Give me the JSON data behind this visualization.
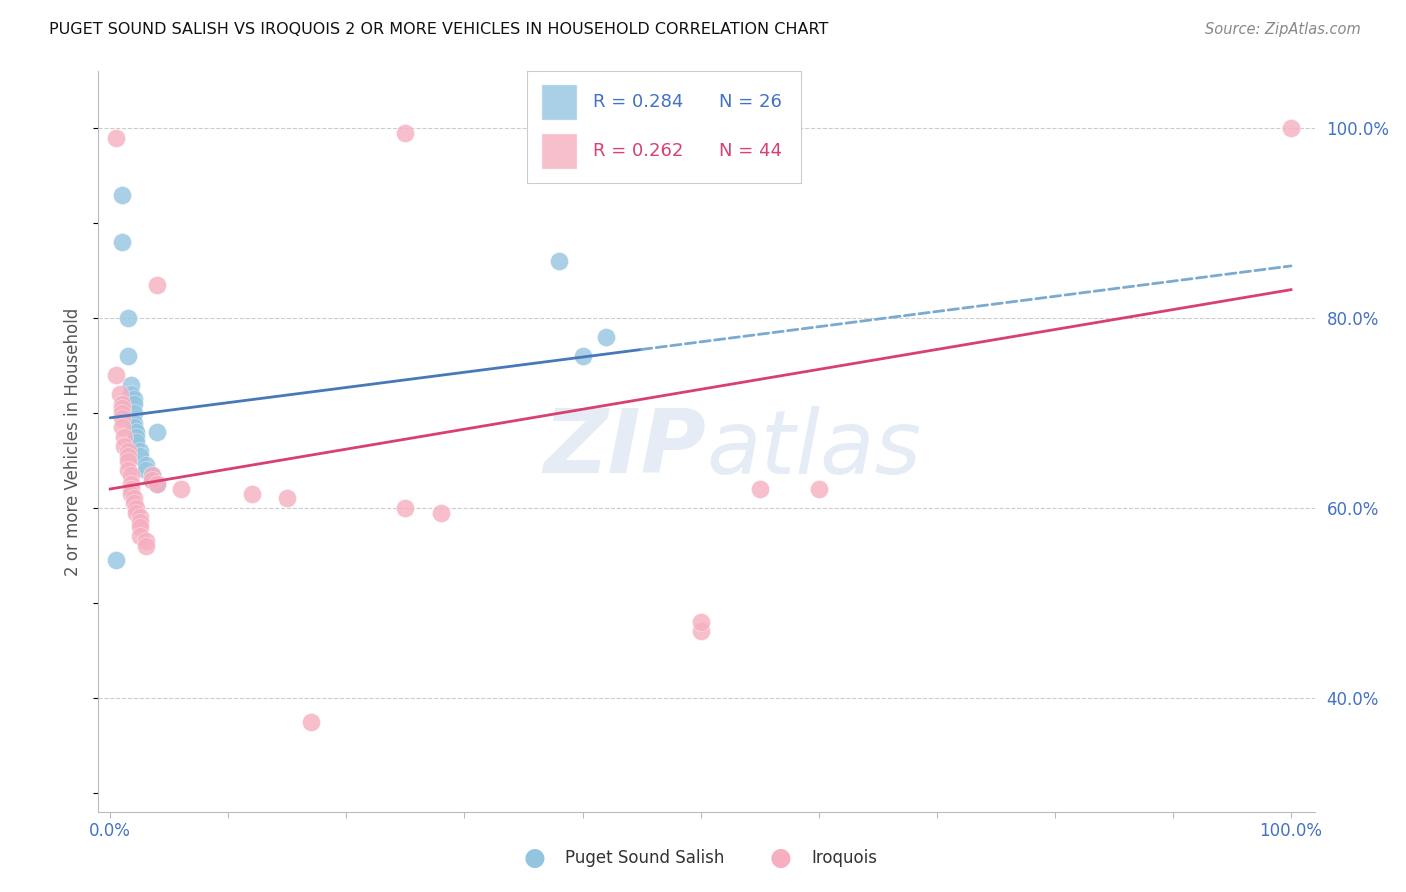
{
  "title": "PUGET SOUND SALISH VS IROQUOIS 2 OR MORE VEHICLES IN HOUSEHOLD CORRELATION CHART",
  "source": "Source: ZipAtlas.com",
  "ylabel": "2 or more Vehicles in Household",
  "xlim": [
    -0.01,
    1.02
  ],
  "ylim": [
    0.28,
    1.06
  ],
  "yticks": [
    0.4,
    0.6,
    0.8,
    1.0
  ],
  "ytick_labels": [
    "40.0%",
    "60.0%",
    "80.0%",
    "100.0%"
  ],
  "xticks": [
    0.0,
    0.1,
    0.2,
    0.3,
    0.4,
    0.5,
    0.6,
    0.7,
    0.8,
    0.9,
    1.0
  ],
  "xtick_labels": [
    "0.0%",
    "",
    "",
    "",
    "",
    "",
    "",
    "",
    "",
    "",
    "100.0%"
  ],
  "blue_color": "#94c5e0",
  "pink_color": "#f5afc0",
  "trend_blue": "#4878b8",
  "trend_blue_dash": "#7aaad0",
  "trend_pink": "#d84070",
  "blue_scatter": [
    [
      0.005,
      0.545
    ],
    [
      0.01,
      0.93
    ],
    [
      0.01,
      0.88
    ],
    [
      0.015,
      0.8
    ],
    [
      0.015,
      0.76
    ],
    [
      0.018,
      0.73
    ],
    [
      0.018,
      0.72
    ],
    [
      0.02,
      0.715
    ],
    [
      0.02,
      0.71
    ],
    [
      0.02,
      0.7
    ],
    [
      0.02,
      0.69
    ],
    [
      0.02,
      0.685
    ],
    [
      0.022,
      0.68
    ],
    [
      0.022,
      0.675
    ],
    [
      0.022,
      0.67
    ],
    [
      0.025,
      0.66
    ],
    [
      0.025,
      0.655
    ],
    [
      0.03,
      0.645
    ],
    [
      0.03,
      0.64
    ],
    [
      0.035,
      0.635
    ],
    [
      0.035,
      0.63
    ],
    [
      0.04,
      0.625
    ],
    [
      0.04,
      0.68
    ],
    [
      0.38,
      0.86
    ],
    [
      0.4,
      0.76
    ],
    [
      0.42,
      0.78
    ]
  ],
  "pink_scatter": [
    [
      0.005,
      0.99
    ],
    [
      0.005,
      0.74
    ],
    [
      0.008,
      0.72
    ],
    [
      0.01,
      0.71
    ],
    [
      0.01,
      0.705
    ],
    [
      0.01,
      0.7
    ],
    [
      0.01,
      0.695
    ],
    [
      0.01,
      0.685
    ],
    [
      0.012,
      0.675
    ],
    [
      0.012,
      0.665
    ],
    [
      0.015,
      0.66
    ],
    [
      0.015,
      0.655
    ],
    [
      0.015,
      0.65
    ],
    [
      0.015,
      0.64
    ],
    [
      0.018,
      0.635
    ],
    [
      0.018,
      0.625
    ],
    [
      0.018,
      0.62
    ],
    [
      0.018,
      0.615
    ],
    [
      0.02,
      0.61
    ],
    [
      0.02,
      0.605
    ],
    [
      0.022,
      0.6
    ],
    [
      0.022,
      0.595
    ],
    [
      0.025,
      0.59
    ],
    [
      0.025,
      0.585
    ],
    [
      0.025,
      0.58
    ],
    [
      0.025,
      0.57
    ],
    [
      0.03,
      0.565
    ],
    [
      0.03,
      0.56
    ],
    [
      0.035,
      0.635
    ],
    [
      0.035,
      0.63
    ],
    [
      0.04,
      0.625
    ],
    [
      0.06,
      0.62
    ],
    [
      0.12,
      0.615
    ],
    [
      0.15,
      0.61
    ],
    [
      0.25,
      0.6
    ],
    [
      0.28,
      0.595
    ],
    [
      0.04,
      0.835
    ],
    [
      0.25,
      0.995
    ],
    [
      0.5,
      0.47
    ],
    [
      0.55,
      0.62
    ],
    [
      0.6,
      0.62
    ],
    [
      0.17,
      0.375
    ],
    [
      0.5,
      0.48
    ],
    [
      1.0,
      1.0
    ]
  ],
  "trend_blue_x0": 0.0,
  "trend_blue_y0": 0.695,
  "trend_blue_x1": 1.0,
  "trend_blue_y1": 0.855,
  "trend_blue_solid_end": 0.45,
  "trend_pink_x0": 0.0,
  "trend_pink_y0": 0.62,
  "trend_pink_x1": 1.0,
  "trend_pink_y1": 0.83
}
